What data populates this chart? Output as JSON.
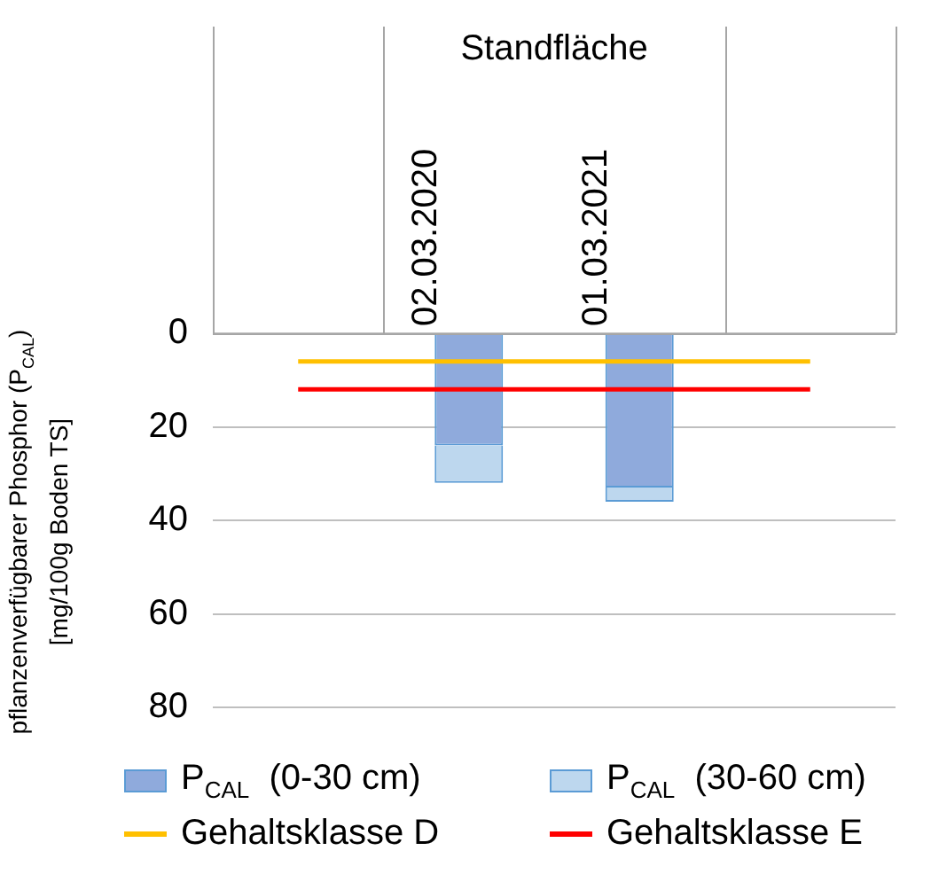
{
  "chart_data": {
    "type": "bar",
    "stacked": true,
    "ylabel": "pflanzenverfügbarer Phosphor (P$_{CAL}$)\n[mg/100g Boden TS]",
    "annotations": [
      "Standfläche"
    ],
    "categories": [
      null,
      "02.03.2020",
      "01.03.2021",
      null
    ],
    "series": [
      {
        "name": "P$_{CAL}$  (0-30 cm)",
        "color": "#8faadc",
        "values": [
          null,
          24,
          33,
          null
        ]
      },
      {
        "name": "P$_{CAL}$  (30-60 cm)",
        "color": "#bdd7ee",
        "values": [
          null,
          8,
          3,
          null
        ]
      },
      {
        "name": "Gehaltsklasse D",
        "type": "line",
        "color": "#ffc000",
        "values": [
          6,
          6,
          6,
          6
        ]
      },
      {
        "name": "Gehaltsklasse E",
        "type": "line",
        "color": "#ff0000",
        "values": [
          12,
          12,
          12,
          12
        ]
      }
    ],
    "ylim": [
      80,
      0
    ],
    "yticks": [
      0,
      20,
      40,
      60,
      80
    ],
    "grid": "y",
    "legend": "bottom",
    "marker": "none",
    "line_style": "solid"
  }
}
